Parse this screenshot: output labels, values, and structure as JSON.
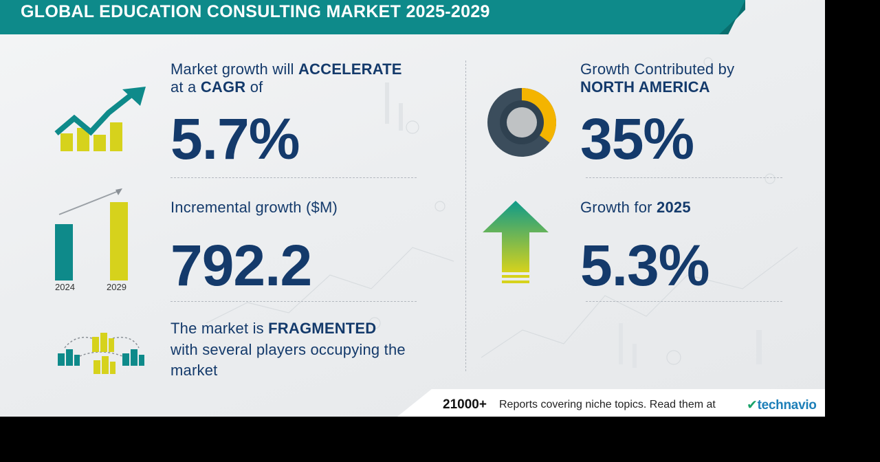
{
  "banner": {
    "title": "GLOBAL EDUCATION CONSULTING MARKET 2025-2029"
  },
  "cagr": {
    "line1_prefix": "Market growth will",
    "line1_bold": "ACCELERATE",
    "line2_prefix": "at a",
    "line2_bold": "CAGR",
    "line2_suffix": "of",
    "value": "5.7%"
  },
  "incremental": {
    "label": "Incremental growth ($M)",
    "value": "792.2",
    "years": [
      "2024",
      "2029"
    ]
  },
  "fragmented": {
    "line1_prefix": "The market is",
    "line1_bold": "FRAGMENTED",
    "line2": "with several players occupying the",
    "line3": "market"
  },
  "region": {
    "line1": "Growth Contributed by",
    "line2_bold": "NORTH AMERICA",
    "value": "35%",
    "share": 0.35
  },
  "yoy": {
    "label_prefix": "Growth for",
    "label_bold": "2025",
    "value": "5.3%"
  },
  "footer": {
    "count": "21000+",
    "text": "Reports covering niche topics. Read them at",
    "brand": "technavio"
  },
  "colors": {
    "teal": "#0e8a8a",
    "navy": "#143a6b",
    "yellow": "#d6d21c",
    "donut_dark": "#3b4d5c",
    "donut_accent": "#f4b400"
  },
  "icons": [
    "growth-chart-icon",
    "bar-compare-icon",
    "buildings-network-icon",
    "donut-icon",
    "up-arrow-icon",
    "technavio-logo-icon"
  ]
}
